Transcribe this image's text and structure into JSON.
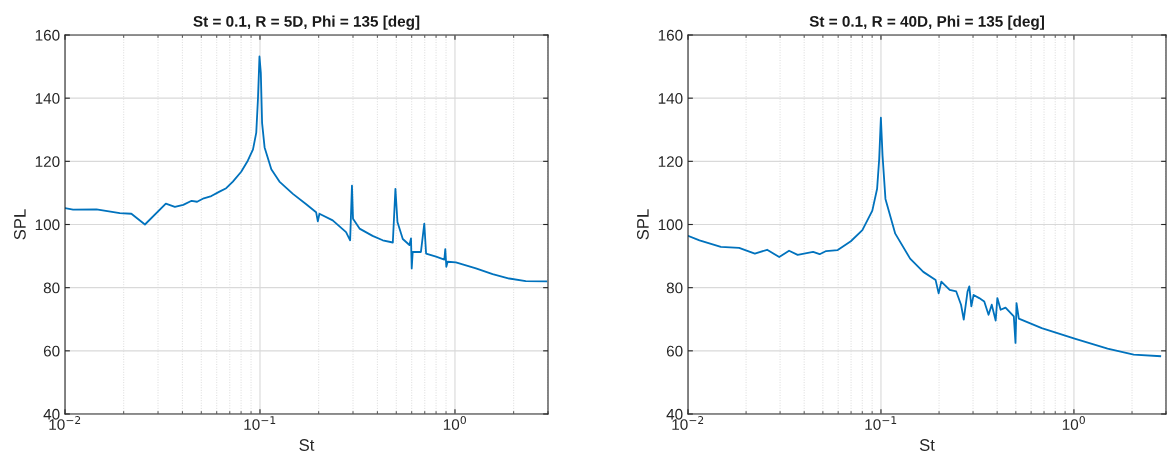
{
  "chart_data": [
    {
      "type": "line",
      "title": "St = 0.1, R = 5D, Phi = 135 [deg]",
      "xlabel": "St",
      "ylabel": "SPL",
      "log": "x",
      "grid": true,
      "marker": "none",
      "line_style": "solid",
      "xlim": [
        0.01,
        3
      ],
      "ylim": [
        40,
        160
      ],
      "xticks": [
        {
          "value": 0.01,
          "label": "10$^{−2}$"
        },
        {
          "value": 0.1,
          "label": "10$^{−1}$"
        },
        {
          "value": 1,
          "label": "10$^{0}$"
        }
      ],
      "yticks": [
        40,
        60,
        80,
        100,
        120,
        140,
        160
      ],
      "series": [
        {
          "color": "#0072bd",
          "x": [
            0.01,
            0.011,
            0.0145,
            0.0191,
            0.0219,
            0.0257,
            0.0329,
            0.0366,
            0.0404,
            0.0446,
            0.0476,
            0.0515,
            0.0563,
            0.062,
            0.0671,
            0.0726,
            0.0801,
            0.0866,
            0.0921,
            0.0957,
            0.0976,
            0.0994,
            0.101,
            0.1025,
            0.1056,
            0.1143,
            0.1258,
            0.1475,
            0.172,
            0.194,
            0.198,
            0.2018,
            0.236,
            0.2763,
            0.29,
            0.2963,
            0.3,
            0.324,
            0.378,
            0.426,
            0.48,
            0.495,
            0.507,
            0.54,
            0.584,
            0.595,
            0.6,
            0.607,
            0.669,
            0.696,
            0.711,
            0.8,
            0.882,
            0.892,
            0.903,
            0.917,
            1.011,
            1.281,
            1.56,
            1.897,
            2.307,
            2.94
          ],
          "values": [
            105.2,
            104.7,
            104.8,
            103.6,
            103.4,
            100.0,
            106.6,
            105.6,
            106.2,
            107.5,
            107.2,
            108.3,
            109.0,
            110.4,
            111.5,
            113.6,
            116.7,
            120.2,
            123.8,
            129.1,
            139.6,
            153.2,
            148.0,
            132.2,
            124.4,
            117.5,
            113.6,
            109.7,
            106.5,
            103.9,
            101.0,
            103.4,
            101.3,
            97.6,
            95.0,
            112.3,
            101.8,
            98.7,
            96.4,
            95.0,
            94.3,
            111.3,
            100.8,
            95.4,
            93.5,
            95.6,
            86.1,
            91.3,
            91.3,
            100.3,
            90.8,
            89.8,
            88.9,
            92.2,
            86.6,
            88.2,
            88.0,
            86.1,
            84.3,
            82.9,
            82.1,
            82.0
          ]
        }
      ]
    },
    {
      "type": "line",
      "title": "St = 0.1, R = 40D, Phi = 135 [deg]",
      "xlabel": "St",
      "ylabel": "SPL",
      "log": "x",
      "grid": true,
      "marker": "none",
      "line_style": "solid",
      "xlim": [
        0.01,
        3
      ],
      "ylim": [
        40,
        160
      ],
      "xticks": [
        {
          "value": 0.01,
          "label": "10$^{−2}$"
        },
        {
          "value": 0.1,
          "label": "10$^{−1}$"
        },
        {
          "value": 1,
          "label": "10$^{0}$"
        }
      ],
      "yticks": [
        40,
        60,
        80,
        100,
        120,
        140,
        160
      ],
      "series": [
        {
          "color": "#0072bd",
          "x": [
            0.01,
            0.01147,
            0.0148,
            0.0184,
            0.0222,
            0.0257,
            0.0297,
            0.0334,
            0.037,
            0.0445,
            0.0481,
            0.052,
            0.0597,
            0.0698,
            0.0801,
            0.0902,
            0.0955,
            0.0979,
            0.0999,
            0.1019,
            0.1055,
            0.1186,
            0.1416,
            0.1657,
            0.192,
            0.199,
            0.2055,
            0.227,
            0.2455,
            0.26,
            0.2685,
            0.281,
            0.287,
            0.294,
            0.302,
            0.323,
            0.343,
            0.361,
            0.375,
            0.393,
            0.401,
            0.417,
            0.442,
            0.488,
            0.498,
            0.504,
            0.518,
            0.681,
            1.008,
            1.494,
            2.04,
            2.8
          ],
          "values": [
            96.4,
            95.0,
            92.9,
            92.6,
            90.8,
            92.0,
            89.7,
            91.7,
            90.4,
            91.3,
            90.6,
            91.6,
            91.9,
            94.7,
            98.2,
            104.4,
            111.3,
            120.7,
            133.8,
            121.8,
            108.1,
            97.1,
            89.2,
            85.0,
            82.4,
            78.2,
            81.9,
            79.3,
            78.8,
            74.6,
            69.9,
            78.8,
            80.4,
            74.1,
            77.7,
            76.7,
            75.6,
            71.4,
            74.6,
            69.6,
            76.7,
            73.0,
            73.7,
            70.9,
            62.5,
            75.1,
            70.2,
            67.2,
            63.9,
            60.7,
            58.8,
            58.3
          ]
        }
      ]
    }
  ]
}
